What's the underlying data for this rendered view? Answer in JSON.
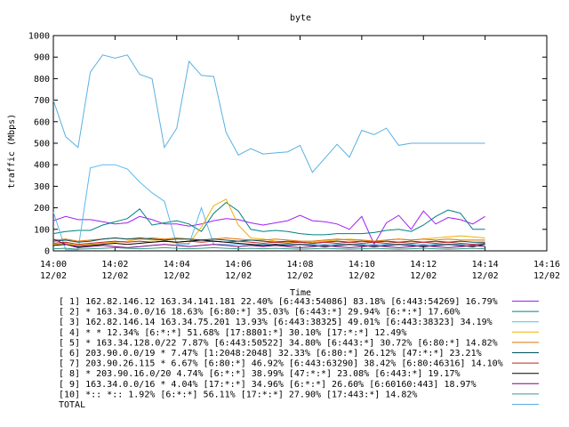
{
  "chart_data": {
    "type": "line",
    "title": "byte",
    "xlabel": "Time",
    "ylabel": "traffic (Mbps)",
    "ylim": [
      0,
      1000
    ],
    "xlim": [
      0,
      140
    ],
    "grid": false,
    "legend_placement": "bottom",
    "y_ticks": [
      {
        "value": 0,
        "label": "0"
      },
      {
        "value": 100,
        "label": "100"
      },
      {
        "value": 200,
        "label": "200"
      },
      {
        "value": 300,
        "label": "300"
      },
      {
        "value": 400,
        "label": "400"
      },
      {
        "value": 500,
        "label": "500"
      },
      {
        "value": 600,
        "label": "600"
      },
      {
        "value": 700,
        "label": "700"
      },
      {
        "value": 800,
        "label": "800"
      },
      {
        "value": 900,
        "label": "900"
      },
      {
        "value": 1000,
        "label": "1000"
      }
    ],
    "x_ticks": [
      {
        "value": 0,
        "time": "14:00",
        "date": "12/02"
      },
      {
        "value": 20,
        "time": "14:02",
        "date": "12/02"
      },
      {
        "value": 40,
        "time": "14:04",
        "date": "12/02"
      },
      {
        "value": 60,
        "time": "14:06",
        "date": "12/02"
      },
      {
        "value": 80,
        "time": "14:08",
        "date": "12/02"
      },
      {
        "value": 100,
        "time": "14:10",
        "date": "12/02"
      },
      {
        "value": 120,
        "time": "14:12",
        "date": "12/02"
      },
      {
        "value": 140,
        "time": "14:14",
        "date": "12/02"
      },
      {
        "value": 160,
        "time": "14:16",
        "date": "12/02"
      }
    ],
    "x": [
      0,
      4,
      8,
      12,
      16,
      20,
      24,
      28,
      32,
      36,
      40,
      44,
      48,
      52,
      56,
      60,
      64,
      68,
      72,
      76,
      80,
      84,
      88,
      92,
      96,
      100,
      104,
      108,
      112,
      116,
      120,
      124,
      128,
      132,
      136,
      140
    ],
    "series": [
      {
        "name": "[ 1] 162.82.146.12 163.34.141.181 22.40%  [6:443:54086] 83.18% [6:443:54269] 16.79%",
        "color": "#a020f0",
        "values": [
          140,
          160,
          145,
          145,
          135,
          125,
          130,
          160,
          145,
          125,
          125,
          115,
          125,
          140,
          150,
          145,
          130,
          120,
          130,
          140,
          165,
          140,
          135,
          125,
          100,
          160,
          30,
          130,
          165,
          100,
          185,
          125,
          155,
          145,
          125,
          160
        ]
      },
      {
        "name": "[ 2] * 163.34.0.0/16 18.63%  [6:80:*] 35.03% [6:443:*] 29.94% [6:*:*] 17.60%",
        "color": "#008080",
        "values": [
          80,
          90,
          95,
          95,
          120,
          135,
          150,
          195,
          120,
          130,
          140,
          125,
          90,
          175,
          225,
          185,
          100,
          90,
          95,
          90,
          80,
          75,
          75,
          80,
          80,
          80,
          85,
          95,
          100,
          90,
          120,
          160,
          190,
          175,
          100,
          100
        ]
      },
      {
        "name": "[ 3] 162.82.146.14 163.34.75.201 13.93%  [6:443:38325] 49.01% [6:443:38323] 34.19%",
        "color": "#5bb8f0",
        "values": [
          180,
          5,
          5,
          385,
          400,
          400,
          380,
          320,
          270,
          230,
          30,
          30,
          200,
          30,
          30,
          30,
          30,
          30,
          30,
          30,
          30,
          30,
          30,
          30,
          30,
          30,
          30,
          30,
          30,
          30,
          30,
          30,
          30,
          30,
          30,
          30
        ]
      },
      {
        "name": "[ 4] * * 12.34%  [6:*:*] 51.68% [17:8801:*] 30.10% [17:*:*] 12.49%",
        "color": "#f0b000",
        "values": [
          30,
          35,
          25,
          30,
          35,
          40,
          45,
          55,
          50,
          50,
          35,
          35,
          110,
          210,
          240,
          120,
          60,
          55,
          45,
          40,
          40,
          40,
          45,
          50,
          55,
          50,
          45,
          50,
          55,
          50,
          55,
          60,
          65,
          70,
          65,
          60
        ]
      },
      {
        "name": "[ 5] * 163.34.128.0/22 7.87%  [6:443:50522] 34.80% [6:443:*] 30.72% [6:80:*] 14.82%",
        "color": "#e07000",
        "values": [
          50,
          55,
          45,
          50,
          55,
          60,
          55,
          55,
          60,
          55,
          60,
          55,
          50,
          55,
          60,
          55,
          50,
          50,
          55,
          50,
          45,
          45,
          50,
          55,
          50,
          50,
          45,
          50,
          55,
          50,
          55,
          50,
          55,
          50,
          50,
          50
        ]
      },
      {
        "name": "[ 6] 203.90.0.0/19 * 7.47%  [1:2048:2048] 32.33% [6:80:*] 26.12% [47:*:*] 23.21%",
        "color": "#005060",
        "values": [
          45,
          50,
          40,
          45,
          55,
          60,
          55,
          60,
          55,
          50,
          55,
          55,
          50,
          55,
          50,
          45,
          50,
          45,
          40,
          45,
          40,
          35,
          40,
          45,
          40,
          45,
          40,
          45,
          40,
          45,
          40,
          45,
          40,
          45,
          40,
          40
        ]
      },
      {
        "name": "[ 7] 203.90.26.115 * 6.67%  [6:80:*] 46.92% [6:443:63290] 38.42% [6:80:46316] 14.10%",
        "color": "#c02020",
        "values": [
          35,
          40,
          30,
          35,
          40,
          45,
          40,
          45,
          40,
          45,
          40,
          45,
          40,
          45,
          40,
          45,
          40,
          35,
          40,
          35,
          40,
          35,
          40,
          35,
          40,
          35,
          40,
          35,
          40,
          35,
          40,
          35,
          40,
          35,
          30,
          35
        ]
      },
      {
        "name": "[ 8] * 203.90.16.0/20 4.74%  [6:*:*] 38.99% [47:*:*] 23.08% [6:443:*] 19.17%",
        "color": "#000000",
        "values": [
          25,
          30,
          20,
          25,
          30,
          35,
          30,
          35,
          40,
          45,
          40,
          45,
          50,
          45,
          40,
          35,
          30,
          25,
          30,
          25,
          30,
          25,
          20,
          25,
          30,
          25,
          20,
          25,
          30,
          25,
          20,
          25,
          30,
          25,
          20,
          30
        ]
      },
      {
        "name": "[ 9] 163.34.0.0/16 * 4.04%  [17:*:*] 34.96% [6:*:*] 26.60% [6:60160:443] 18.97%",
        "color": "#800080",
        "values": [
          55,
          30,
          15,
          20,
          25,
          20,
          15,
          20,
          25,
          30,
          25,
          20,
          25,
          30,
          25,
          20,
          25,
          20,
          25,
          20,
          15,
          20,
          25,
          20,
          15,
          20,
          25,
          20,
          15,
          20,
          25,
          20,
          15,
          20,
          25,
          20
        ]
      },
      {
        "name": "[10] *:: *:: 1.92%  [6:*:*] 56.11% [17:*:*] 27.90% [17:443:*] 14.82%",
        "color": "#3a9a88",
        "values": [
          10,
          12,
          8,
          10,
          12,
          15,
          12,
          10,
          12,
          15,
          12,
          10,
          12,
          15,
          12,
          10,
          12,
          10,
          12,
          10,
          8,
          10,
          12,
          10,
          8,
          10,
          12,
          10,
          8,
          10,
          12,
          10,
          8,
          10,
          12,
          10
        ]
      },
      {
        "name": "TOTAL",
        "color": "#5ab0e0",
        "values": [
          700,
          530,
          480,
          830,
          910,
          895,
          910,
          820,
          800,
          480,
          570,
          880,
          815,
          810,
          550,
          445,
          475,
          450,
          455,
          460,
          490,
          365,
          430,
          495,
          435,
          560,
          540,
          570,
          490,
          500,
          500,
          500,
          500,
          500,
          500,
          500
        ]
      }
    ]
  }
}
